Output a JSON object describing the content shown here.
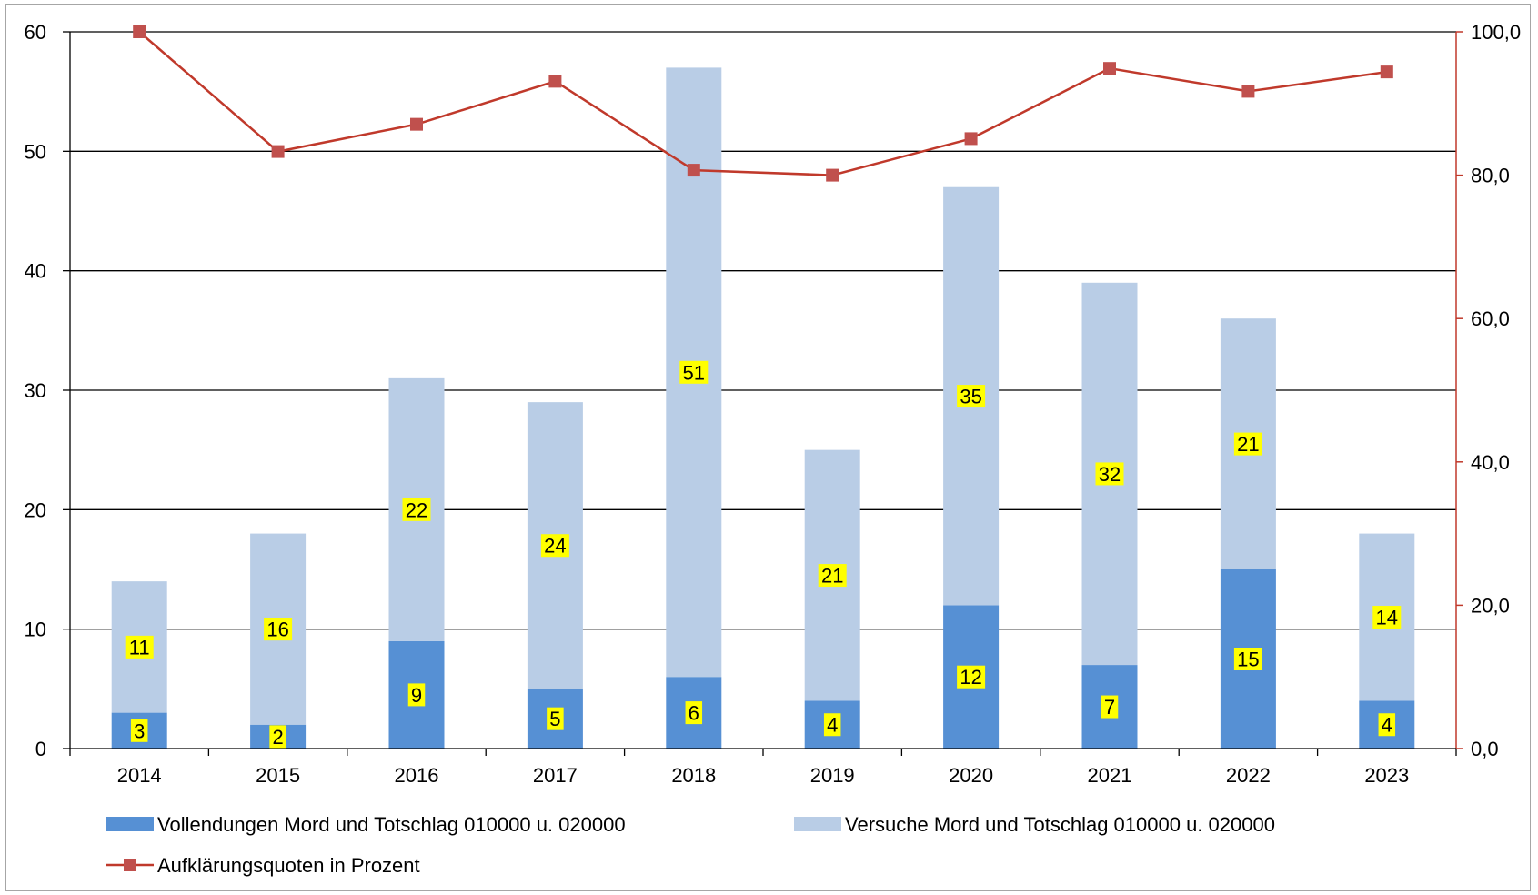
{
  "chart_data": {
    "type": "bar",
    "stacked": true,
    "categories": [
      "2014",
      "2015",
      "2016",
      "2017",
      "2018",
      "2019",
      "2020",
      "2021",
      "2022",
      "2023"
    ],
    "series": [
      {
        "name": "Vollendungen Mord und Totschlag 010000 u. 020000",
        "type": "bar",
        "axis": "left",
        "color": "#5690d4",
        "values": [
          3,
          2,
          9,
          5,
          6,
          4,
          12,
          7,
          15,
          4
        ]
      },
      {
        "name": "Versuche Mord und Totschlag 010000 u. 020000",
        "type": "bar",
        "axis": "left",
        "color": "#b9cde6",
        "values": [
          11,
          16,
          22,
          24,
          51,
          21,
          35,
          32,
          21,
          14
        ]
      },
      {
        "name": "Aufklärungsquoten in Prozent",
        "type": "line",
        "axis": "right",
        "color": "#c0392b",
        "marker_color": "#c0504d",
        "values": [
          100.0,
          83.3,
          87.1,
          93.1,
          80.7,
          80.0,
          85.1,
          94.9,
          91.7,
          94.4
        ]
      }
    ],
    "y_left": {
      "min": 0,
      "max": 60,
      "step": 10,
      "ticks": [
        "0",
        "10",
        "20",
        "30",
        "40",
        "50",
        "60"
      ]
    },
    "y_right": {
      "min": 0,
      "max": 100,
      "step": 20,
      "ticks": [
        "0,0",
        "20,0",
        "40,0",
        "60,0",
        "80,0",
        "100,0"
      ]
    },
    "grid": true,
    "legend_position": "bottom",
    "data_label_background": "#ffff00"
  }
}
